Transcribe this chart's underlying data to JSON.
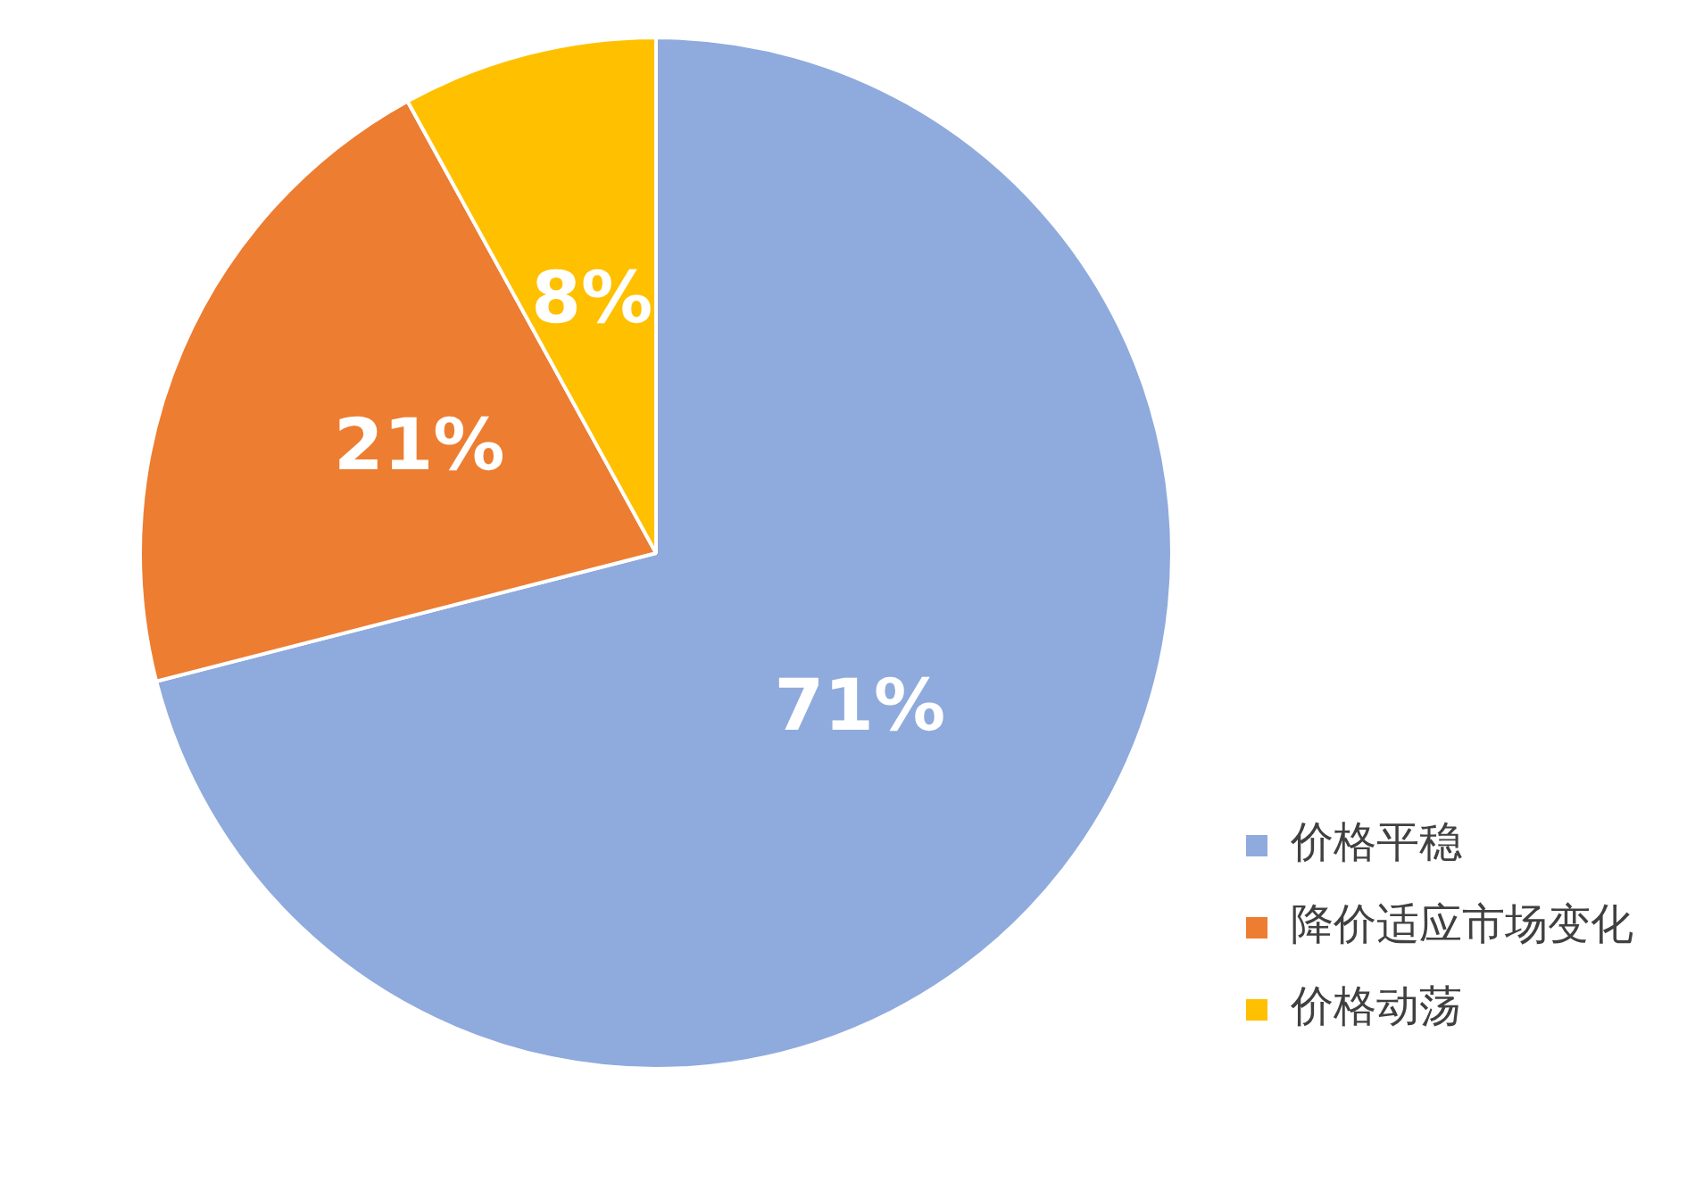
{
  "chart_data": {
    "type": "pie",
    "categories": [
      "价格平稳",
      "降价适应市场变化",
      "价格动荡"
    ],
    "values": [
      71,
      21,
      8
    ],
    "colors": [
      "#8faadc",
      "#ed7d31",
      "#ffc000"
    ],
    "value_labels": [
      "71%",
      "21%",
      "8%"
    ],
    "legend": "bottom right"
  }
}
